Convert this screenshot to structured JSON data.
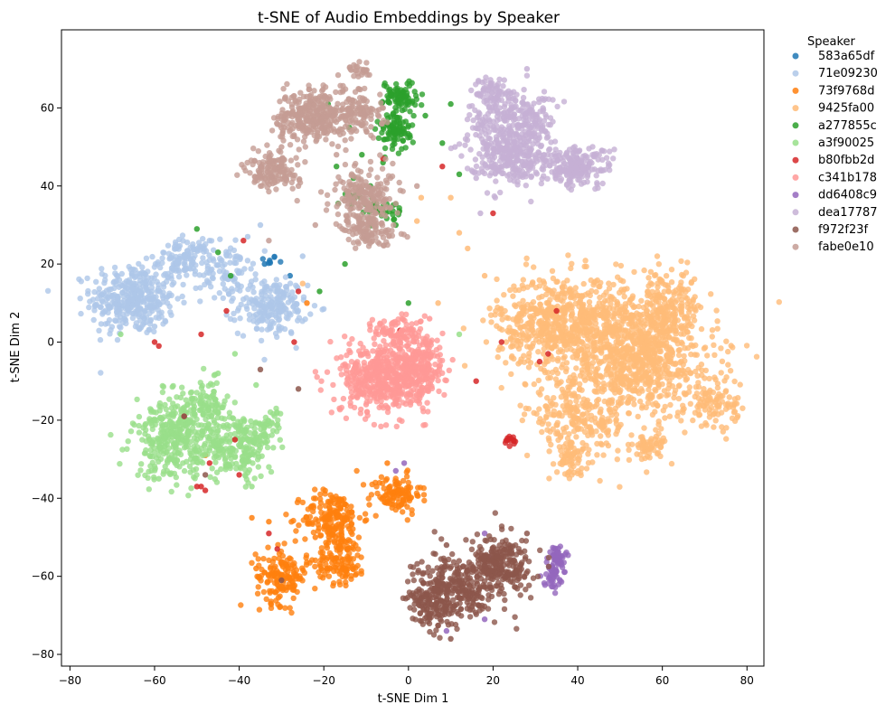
{
  "chart_data": {
    "type": "scatter",
    "title": "t-SNE of Audio Embeddings by Speaker",
    "xlabel": "t-SNE Dim 1",
    "ylabel": "t-SNE Dim 2",
    "xlim": [
      -82,
      84
    ],
    "ylim": [
      -83,
      80
    ],
    "xticks": [
      -80,
      -60,
      -40,
      -20,
      0,
      20,
      40,
      60,
      80
    ],
    "yticks": [
      -80,
      -60,
      -40,
      -20,
      0,
      20,
      40,
      60
    ],
    "grid": false,
    "legend": {
      "title": "Speaker",
      "placement": "outside-right"
    },
    "series": [
      {
        "name": "583a65df",
        "color": "#1f77b4",
        "clusters": [
          {
            "cx": -33,
            "cy": 21,
            "sx": 1.0,
            "sy": 0.6,
            "n": 8
          }
        ],
        "points": [
          [
            -28,
            17
          ],
          [
            -34,
            20
          ]
        ]
      },
      {
        "name": "71e09230",
        "color": "#aec7e8",
        "clusters": [
          {
            "cx": -65,
            "cy": 11,
            "sx": 5.0,
            "sy": 4.5,
            "n": 360
          },
          {
            "cx": -53,
            "cy": 21,
            "sx": 3.0,
            "sy": 2.5,
            "n": 120
          },
          {
            "cx": -43,
            "cy": 18,
            "sx": 3.0,
            "sy": 4.0,
            "n": 90
          },
          {
            "cx": -32,
            "cy": 9,
            "sx": 4.0,
            "sy": 3.5,
            "n": 200
          }
        ],
        "points": [
          [
            -38,
            27
          ],
          [
            -31,
            13
          ],
          [
            -25,
            22
          ],
          [
            -47,
            26
          ],
          [
            -35,
            30
          ],
          [
            -60,
            4
          ]
        ]
      },
      {
        "name": "73f9768d",
        "color": "#ff7f0e",
        "clusters": [
          {
            "cx": -3,
            "cy": -39,
            "sx": 3.0,
            "sy": 2.5,
            "n": 110
          },
          {
            "cx": -18,
            "cy": -45,
            "sx": 3.5,
            "sy": 3.5,
            "n": 180
          },
          {
            "cx": -16,
            "cy": -56,
            "sx": 3.0,
            "sy": 3.0,
            "n": 120
          },
          {
            "cx": -30,
            "cy": -60,
            "sx": 3.0,
            "sy": 3.5,
            "n": 150
          }
        ],
        "points": [
          [
            -22,
            -50
          ],
          [
            -37,
            -45
          ],
          [
            -33,
            -46
          ],
          [
            -5,
            -31
          ],
          [
            -48,
            -29
          ],
          [
            -24,
            10
          ],
          [
            -36,
            -58
          ]
        ]
      },
      {
        "name": "9425fa00",
        "color": "#ffbb78",
        "clusters": [
          {
            "cx": 37,
            "cy": 5,
            "sx": 8.0,
            "sy": 6.0,
            "n": 700
          },
          {
            "cx": 55,
            "cy": -5,
            "sx": 9.0,
            "sy": 7.0,
            "n": 700
          },
          {
            "cx": 40,
            "cy": -20,
            "sx": 6.0,
            "sy": 5.0,
            "n": 250
          },
          {
            "cx": 60,
            "cy": 8,
            "sx": 5.0,
            "sy": 5.0,
            "n": 250
          },
          {
            "cx": 72,
            "cy": -16,
            "sx": 3.0,
            "sy": 2.5,
            "n": 90
          },
          {
            "cx": 57,
            "cy": -27,
            "sx": 2.0,
            "sy": 2.0,
            "n": 60
          },
          {
            "cx": 38,
            "cy": -30,
            "sx": 2.0,
            "sy": 2.0,
            "n": 50
          }
        ],
        "points": [
          [
            3,
            37
          ],
          [
            10,
            37
          ],
          [
            2,
            31
          ],
          [
            -25,
            15
          ],
          [
            14,
            24
          ],
          [
            18,
            17
          ],
          [
            7,
            10
          ],
          [
            12,
            28
          ]
        ]
      },
      {
        "name": "a277855c",
        "color": "#2ca02c",
        "clusters": [
          {
            "cx": -2,
            "cy": 63,
            "sx": 2.0,
            "sy": 2.0,
            "n": 80
          },
          {
            "cx": -3,
            "cy": 54,
            "sx": 2.0,
            "sy": 2.5,
            "n": 90
          },
          {
            "cx": -6,
            "cy": 34,
            "sx": 2.0,
            "sy": 1.5,
            "n": 40
          },
          {
            "cx": -13,
            "cy": 37,
            "sx": 1.0,
            "sy": 1.0,
            "n": 12
          }
        ],
        "points": [
          [
            -11,
            48
          ],
          [
            -17,
            45
          ],
          [
            -9,
            40
          ],
          [
            -14,
            55
          ],
          [
            -19,
            61
          ],
          [
            10,
            61
          ],
          [
            12,
            43
          ],
          [
            8,
            51
          ],
          [
            -15,
            20
          ],
          [
            -50,
            29
          ],
          [
            0,
            10
          ],
          [
            -3,
            30
          ],
          [
            -21,
            13
          ],
          [
            -42,
            17
          ],
          [
            -45,
            23
          ],
          [
            -6,
            46
          ],
          [
            4,
            58
          ],
          [
            -13,
            42
          ]
        ]
      },
      {
        "name": "a3f90025",
        "color": "#98df8a",
        "clusters": [
          {
            "cx": -55,
            "cy": -25,
            "sx": 5.0,
            "sy": 5.0,
            "n": 360
          },
          {
            "cx": -40,
            "cy": -27,
            "sx": 4.0,
            "sy": 4.0,
            "n": 200
          },
          {
            "cx": -48,
            "cy": -16,
            "sx": 3.0,
            "sy": 3.0,
            "n": 100
          },
          {
            "cx": -33,
            "cy": -21,
            "sx": 2.0,
            "sy": 2.0,
            "n": 40
          }
        ],
        "points": [
          [
            -68,
            2
          ],
          [
            -41,
            -3
          ],
          [
            -36,
            -11
          ],
          [
            -45,
            -8
          ],
          [
            12,
            2
          ],
          [
            -37,
            -37
          ],
          [
            -59,
            -35
          ]
        ]
      },
      {
        "name": "b80fbb2d",
        "color": "#d62728",
        "clusters": [
          {
            "cx": 24.5,
            "cy": -25,
            "sx": 0.7,
            "sy": 0.6,
            "n": 14
          }
        ],
        "points": [
          [
            -60,
            0
          ],
          [
            -59,
            -1
          ],
          [
            -49,
            -37
          ],
          [
            -48,
            -38
          ],
          [
            -50,
            -37
          ],
          [
            -41,
            -25
          ],
          [
            -47,
            -31
          ],
          [
            -53,
            -19
          ],
          [
            -43,
            8
          ],
          [
            -49,
            2
          ],
          [
            -27,
            0
          ],
          [
            -33,
            -49
          ],
          [
            -31,
            -53
          ],
          [
            -6,
            47
          ],
          [
            8,
            45
          ],
          [
            22,
            0
          ],
          [
            35,
            8
          ],
          [
            20,
            33
          ],
          [
            31,
            -5
          ],
          [
            16,
            -10
          ],
          [
            -39,
            26
          ],
          [
            -26,
            13
          ],
          [
            33,
            -3
          ],
          [
            -2,
            3
          ],
          [
            -40,
            -34
          ]
        ]
      },
      {
        "name": "c341b178",
        "color": "#ff9896",
        "clusters": [
          {
            "cx": -6,
            "cy": -9,
            "sx": 5.0,
            "sy": 4.5,
            "n": 500
          },
          {
            "cx": 3,
            "cy": -6,
            "sx": 3.0,
            "sy": 5.0,
            "n": 200
          },
          {
            "cx": -3,
            "cy": 3,
            "sx": 2.5,
            "sy": 2.0,
            "n": 70
          }
        ],
        "points": [
          [
            -10,
            -16
          ],
          [
            5,
            6
          ]
        ]
      },
      {
        "name": "dd6408c9",
        "color": "#9467bd",
        "clusters": [
          {
            "cx": 35,
            "cy": -55,
            "sx": 1.0,
            "sy": 1.5,
            "n": 50
          },
          {
            "cx": 34,
            "cy": -60,
            "sx": 1.0,
            "sy": 1.5,
            "n": 40
          }
        ],
        "points": [
          [
            -1,
            -31
          ],
          [
            18,
            -49
          ],
          [
            19,
            -55
          ],
          [
            9,
            -74
          ],
          [
            18,
            -71
          ],
          [
            -3,
            -33
          ]
        ]
      },
      {
        "name": "dea17787",
        "color": "#c5b0d5",
        "clusters": [
          {
            "cx": 24,
            "cy": 48,
            "sx": 5.0,
            "sy": 3.5,
            "n": 320
          },
          {
            "cx": 40,
            "cy": 45,
            "sx": 4.0,
            "sy": 2.5,
            "n": 200
          },
          {
            "cx": 25,
            "cy": 57,
            "sx": 5.0,
            "sy": 3.0,
            "n": 200
          },
          {
            "cx": 21,
            "cy": 64,
            "sx": 3.0,
            "sy": 2.0,
            "n": 80
          }
        ],
        "points": [
          [
            28,
            70
          ],
          [
            32,
            62
          ],
          [
            17,
            33
          ],
          [
            16,
            42
          ],
          [
            11,
            50
          ]
        ]
      },
      {
        "name": "f972f23f",
        "color": "#8c564b",
        "clusters": [
          {
            "cx": 22,
            "cy": -57,
            "sx": 3.5,
            "sy": 3.5,
            "n": 220
          },
          {
            "cx": 12,
            "cy": -62,
            "sx": 5.0,
            "sy": 4.0,
            "n": 260
          },
          {
            "cx": 6,
            "cy": -68,
            "sx": 3.0,
            "sy": 3.0,
            "n": 140
          }
        ],
        "points": [
          [
            28,
            -49
          ],
          [
            10,
            -76
          ],
          [
            9,
            -52
          ],
          [
            -35,
            -7
          ],
          [
            -26,
            -12
          ],
          [
            -53,
            -19
          ],
          [
            -30,
            -61
          ],
          [
            -48,
            -34
          ]
        ]
      },
      {
        "name": "fabe0e10",
        "color": "#c49c94",
        "clusters": [
          {
            "cx": -23,
            "cy": 58,
            "sx": 4.0,
            "sy": 3.5,
            "n": 300
          },
          {
            "cx": -12,
            "cy": 59,
            "sx": 3.0,
            "sy": 3.0,
            "n": 120
          },
          {
            "cx": -32,
            "cy": 44,
            "sx": 3.0,
            "sy": 2.5,
            "n": 140
          },
          {
            "cx": -10,
            "cy": 37,
            "sx": 4.0,
            "sy": 4.0,
            "n": 220
          },
          {
            "cx": -9,
            "cy": 28,
            "sx": 3.0,
            "sy": 2.0,
            "n": 90
          },
          {
            "cx": -12,
            "cy": 70,
            "sx": 1.5,
            "sy": 1.0,
            "n": 25
          }
        ],
        "points": [
          [
            -26,
            40
          ],
          [
            -17,
            48
          ],
          [
            2,
            40
          ],
          [
            -22,
            30
          ],
          [
            -33,
            26
          ],
          [
            -30,
            50
          ]
        ]
      }
    ]
  }
}
